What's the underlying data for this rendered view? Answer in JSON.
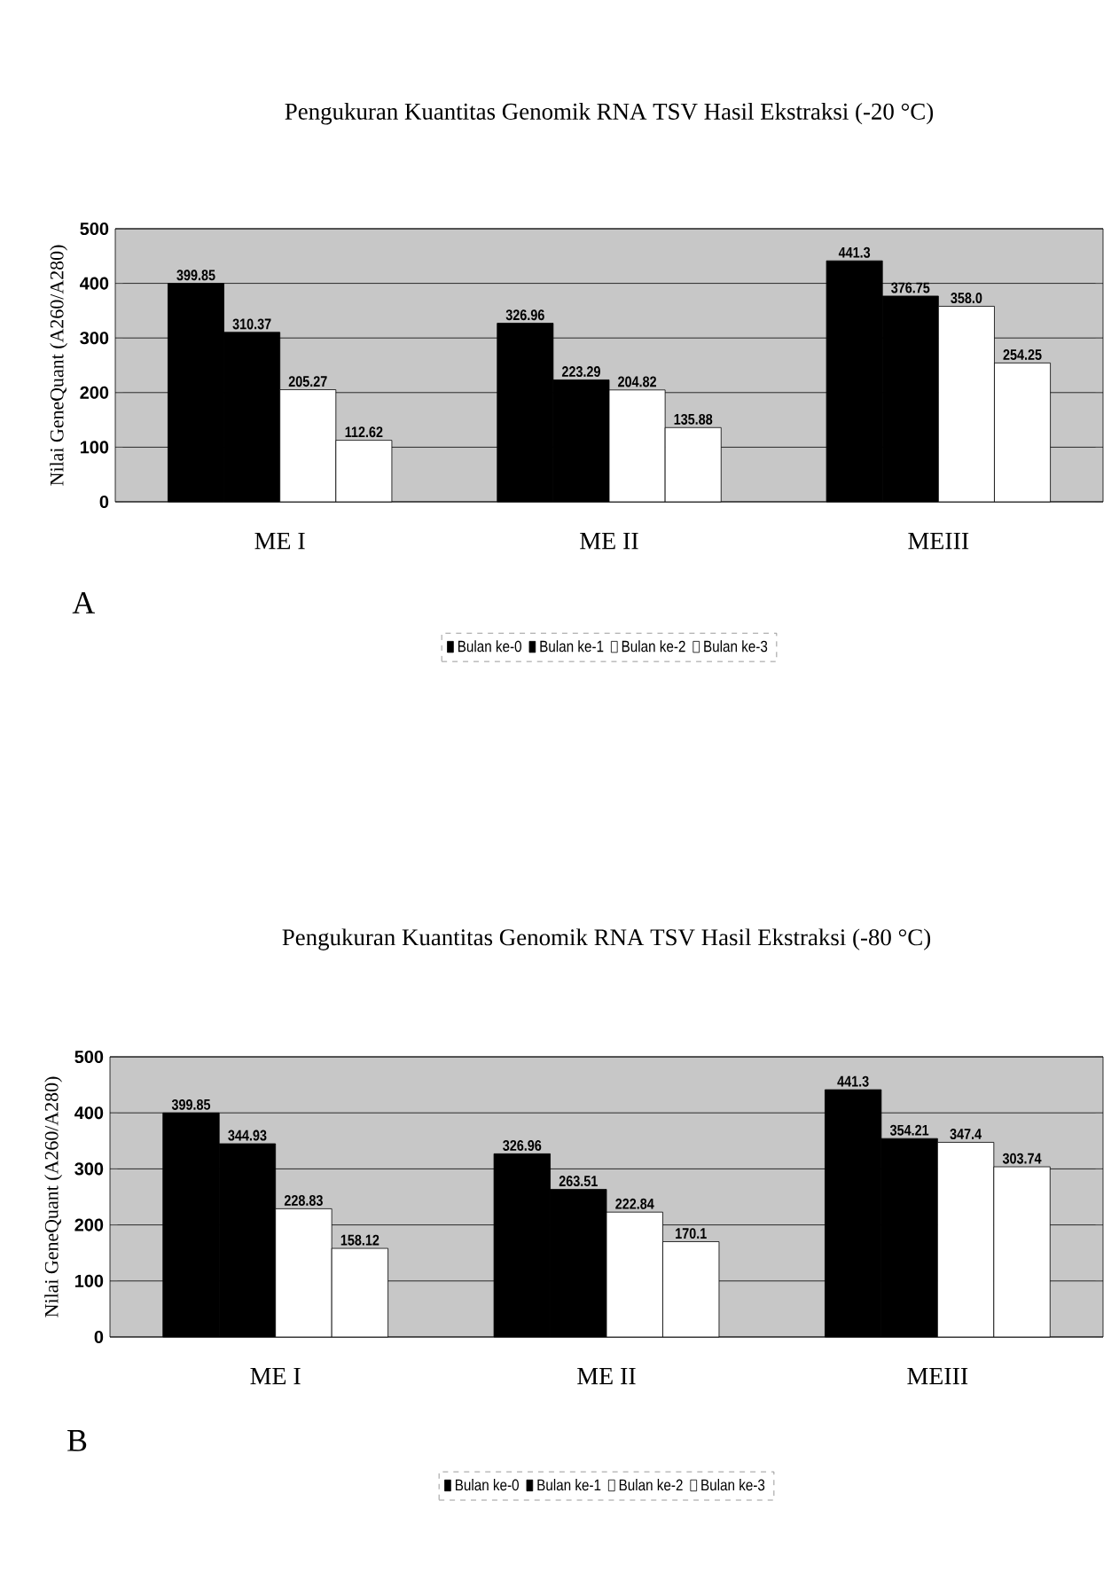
{
  "chart_data": [
    {
      "type": "bar",
      "title": "Pengukuran Kuantitas Genomik RNA TSV Hasil Ekstraksi (-20 °C)",
      "ylabel": "Nilai GeneQuant (A260/A280)",
      "categories": [
        "ME  I",
        "ME II",
        "MEIII"
      ],
      "series": [
        {
          "name": "Bulan ke-0",
          "color": "#000000",
          "values": [
            399.85,
            326.96,
            441.3
          ],
          "value_labels": [
            "399.85",
            "326.96",
            "441.3"
          ]
        },
        {
          "name": "Bulan ke-1",
          "color": "#000000",
          "values": [
            310.37,
            223.29,
            376.75
          ],
          "value_labels": [
            "310.37",
            "223.29",
            "376.75"
          ]
        },
        {
          "name": "Bulan ke-2",
          "color": "#ffffff",
          "values": [
            205.27,
            204.82,
            358.0
          ],
          "value_labels": [
            "205.27",
            "204.82",
            "358.0"
          ]
        },
        {
          "name": "Bulan ke-3",
          "color": "#ffffff",
          "values": [
            112.62,
            135.88,
            254.25
          ],
          "value_labels": [
            "112.62",
            "135.88",
            "254.25"
          ]
        }
      ],
      "ylim": [
        0,
        500
      ],
      "yticks": [
        0,
        100,
        200,
        300,
        400,
        500
      ],
      "grid": "y",
      "legend": "bottom",
      "annotations": [
        "A"
      ]
    },
    {
      "type": "bar",
      "title": "Pengukuran Kuantitas Genomik RNA TSV Hasil Ekstraksi (-80 °C)",
      "ylabel": "Nilai GeneQuant (A260/A280)",
      "categories": [
        "ME  I",
        "ME II",
        "MEIII"
      ],
      "series": [
        {
          "name": "Bulan ke-0",
          "color": "#000000",
          "values": [
            399.85,
            326.96,
            441.3
          ]
        },
        {
          "name": "Bulan ke-1",
          "color": "#000000",
          "values": [
            344.93,
            263.51,
            354.21
          ]
        },
        {
          "name": "Bulan ke-2",
          "color": "#ffffff",
          "values": [
            228.83,
            222.84,
            347.4
          ]
        },
        {
          "name": "Bulan ke-3",
          "color": "#ffffff",
          "values": [
            158.12,
            170.1,
            303.74
          ]
        }
      ],
      "ylim": [
        0,
        500
      ],
      "yticks": [
        0,
        100,
        200,
        300,
        400,
        500
      ],
      "grid": "y",
      "legend": "bottom",
      "data_labels": true,
      "annotations": [
        "B"
      ]
    }
  ]
}
